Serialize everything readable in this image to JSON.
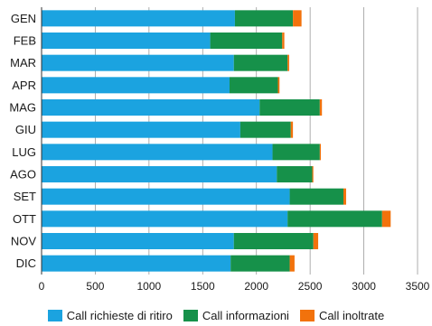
{
  "chart_data": {
    "type": "bar",
    "orientation": "horizontal",
    "stacked": true,
    "categories": [
      "GEN",
      "FEB",
      "MAR",
      "APR",
      "MAG",
      "GIU",
      "LUG",
      "AGO",
      "SET",
      "OTT",
      "NOV",
      "DIC"
    ],
    "series": [
      {
        "name": "Call richieste di ritiro",
        "color": "#1ba3e0",
        "values": [
          1800,
          1570,
          1790,
          1750,
          2030,
          1850,
          2150,
          2190,
          2310,
          2290,
          1790,
          1760
        ]
      },
      {
        "name": "Call informazioni",
        "color": "#16914a",
        "values": [
          540,
          670,
          500,
          450,
          560,
          470,
          440,
          330,
          500,
          880,
          740,
          550
        ]
      },
      {
        "name": "Call inoltrate",
        "color": "#f2720c",
        "values": [
          80,
          20,
          15,
          15,
          20,
          20,
          10,
          10,
          25,
          80,
          45,
          45
        ]
      }
    ],
    "xlim": [
      0,
      3500
    ],
    "xticks": [
      0,
      500,
      1000,
      1500,
      2000,
      2500,
      3000,
      3500
    ],
    "grid": true,
    "legend_position": "bottom"
  }
}
